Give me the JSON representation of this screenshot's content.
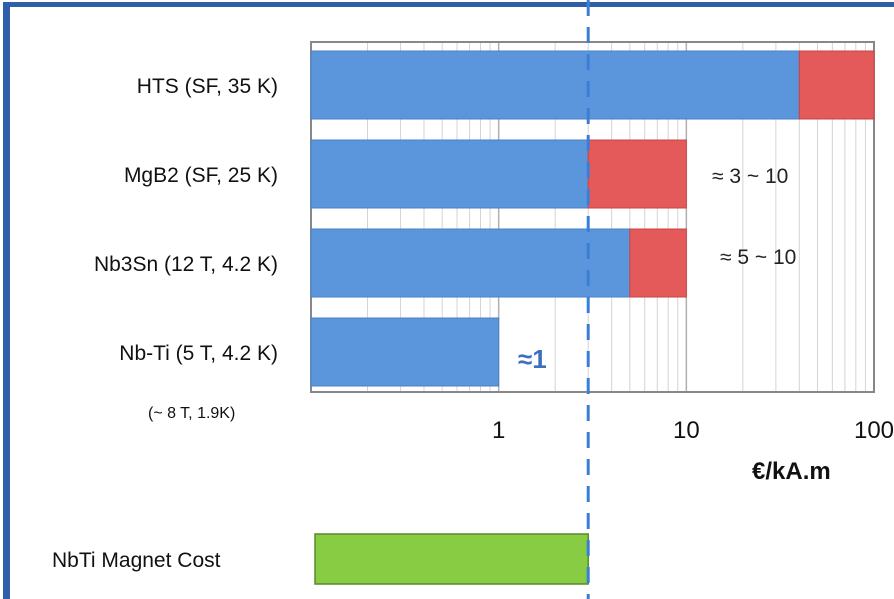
{
  "chart_data": {
    "type": "bar",
    "orientation": "horizontal",
    "stacked": true,
    "x_scale": "log",
    "xlim": [
      0.1,
      100
    ],
    "xlabel": "€/kA.m",
    "x_ticks": [
      "1",
      "10",
      "100"
    ],
    "categories": [
      "HTS (SF, 35 K)",
      "MgB2 (SF, 25 K)",
      "Nb3Sn (12 T, 4.2 K)",
      "Nb-Ti (5 T, 4.2 K)"
    ],
    "category_note": "(~ 8 T, 1.9K)",
    "ranges": [
      {
        "low": 40,
        "high": 100,
        "color": "#e45a5a"
      },
      {
        "low": 3,
        "high": 10,
        "color": "#e45a5a"
      },
      {
        "low": 5,
        "high": 10,
        "color": "#e45a5a"
      },
      {
        "low": 1,
        "high": 1,
        "color": "#e45a5a"
      }
    ],
    "base_color": "#5b96dc",
    "annotations": [
      "≈ 3 ~ 10",
      "≈ 5 ~ 10",
      "≈1"
    ],
    "reference_line_value": 3,
    "magnet_cost": {
      "label": "NbTi Magnet Cost",
      "value": 3,
      "color": "#88cc44"
    },
    "grid": true
  }
}
